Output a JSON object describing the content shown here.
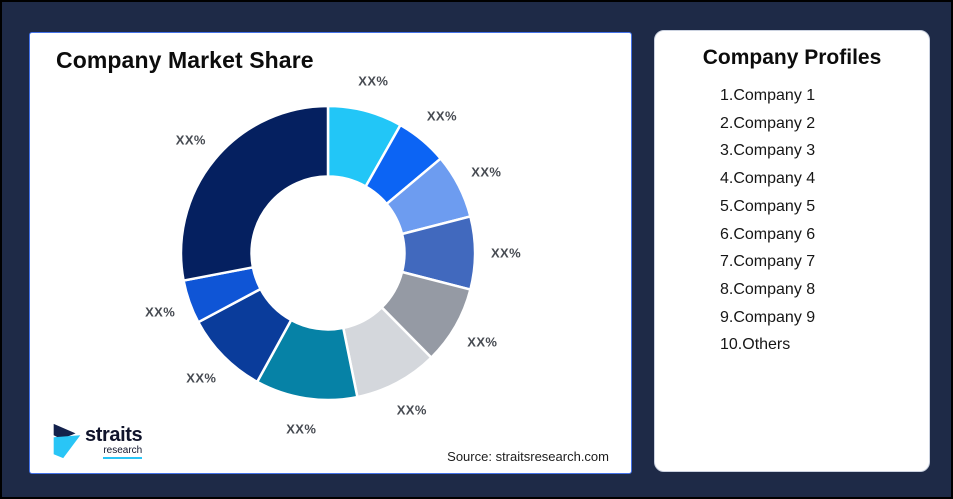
{
  "frame": {
    "background": "#1E2A47",
    "border_color": "#000000"
  },
  "chart_card": {
    "title": "Company Market Share",
    "source": "Source: straitsresearch.com",
    "border_color": "#4472E8",
    "logo": {
      "name": "straits",
      "sub": "research",
      "navy": "#13214B",
      "cyan": "#29C5F6"
    }
  },
  "chart_data": {
    "type": "pie",
    "subtype": "donut",
    "title": "Company Market Share",
    "source": "Source: straitsresearch.com",
    "start_angle_deg": 0,
    "direction": "clockwise",
    "hole_ratio": 0.52,
    "gridlines": false,
    "legend": "none",
    "segments": [
      {
        "label": "XX%",
        "value": 8.2,
        "color": "#22C6F7",
        "name": "company-1"
      },
      {
        "label": "XX%",
        "value": 5.7,
        "color": "#0C64F4",
        "name": "company-2"
      },
      {
        "label": "XX%",
        "value": 7.1,
        "color": "#6D9CF0",
        "name": "company-3"
      },
      {
        "label": "XX%",
        "value": 8.0,
        "color": "#4169BE",
        "name": "company-4"
      },
      {
        "label": "XX%",
        "value": 8.6,
        "color": "#959AA4",
        "name": "company-5"
      },
      {
        "label": "XX%",
        "value": 9.2,
        "color": "#D4D7DC",
        "name": "company-6"
      },
      {
        "label": "XX%",
        "value": 11.2,
        "color": "#0682A6",
        "name": "company-7"
      },
      {
        "label": "XX%",
        "value": 9.2,
        "color": "#0A3C9B",
        "name": "company-8"
      },
      {
        "label": "XX%",
        "value": 4.8,
        "color": "#0F55D6",
        "name": "company-9"
      },
      {
        "label": "XX%",
        "value": 28.0,
        "color": "#052060",
        "name": "others"
      }
    ]
  },
  "profiles_card": {
    "title": "Company Profiles",
    "items": [
      "1.Company 1",
      "2.Company 2",
      "3.Company 3",
      "4.Company 4",
      "5.Company 5",
      "6.Company 6",
      "7.Company 7",
      "8.Company 8",
      "9.Company 9",
      "10.Others"
    ]
  }
}
